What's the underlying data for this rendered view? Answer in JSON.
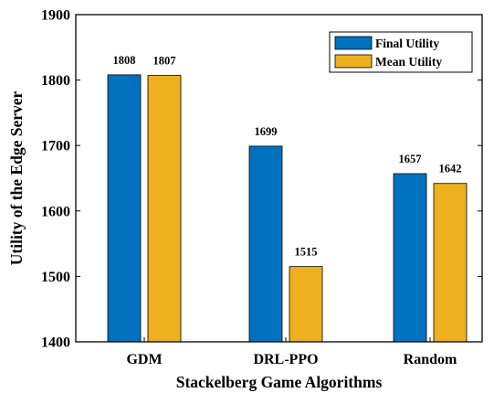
{
  "chart_data": {
    "type": "bar",
    "categories": [
      "GDM",
      "DRL-PPO",
      "Random"
    ],
    "series": [
      {
        "name": "Final Utility",
        "values": [
          1808,
          1699,
          1657
        ],
        "color": "#0072BD"
      },
      {
        "name": "Mean Utility",
        "values": [
          1807,
          1515,
          1642
        ],
        "color": "#EDB120"
      }
    ],
    "xlabel": "Stackelberg Game Algorithms",
    "ylabel": "Utility of the Edge Server",
    "ylim": [
      1400,
      1900
    ],
    "yticks": [
      1400,
      1500,
      1600,
      1700,
      1800,
      1900
    ],
    "legend_position": "top-right",
    "grid": false
  }
}
